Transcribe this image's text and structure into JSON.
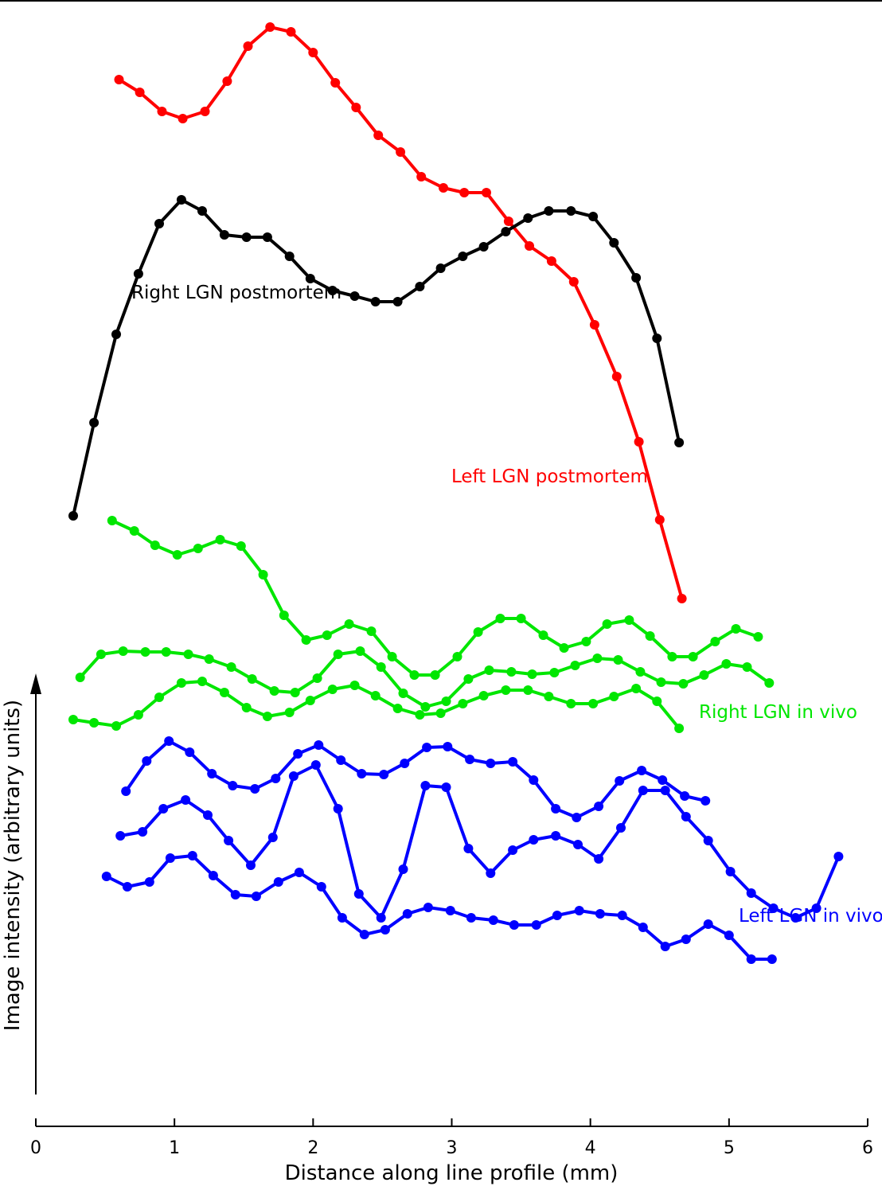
{
  "chart_data": {
    "type": "line",
    "title": "",
    "xlabel": "Distance along line profile (mm)",
    "ylabel": "Image intensity (arbitrary units)",
    "xlim": [
      0,
      6
    ],
    "xticks": [
      "0",
      "1",
      "2",
      "3",
      "4",
      "5",
      "6"
    ],
    "grid": false,
    "y_units": "arbitrary units (trace baselines offset)",
    "series": [
      {
        "name": "Left LGN postmortem",
        "color": "#ff0000",
        "x": [
          0.6,
          0.75,
          0.91,
          1.06,
          1.22,
          1.38,
          1.53,
          1.69,
          1.84,
          2.0,
          2.16,
          2.31,
          2.47,
          2.63,
          2.78,
          2.94,
          3.09,
          3.25,
          3.41,
          3.56,
          3.72,
          3.88,
          4.03,
          4.19,
          4.35,
          4.5,
          4.66
        ],
        "y": [
          93.4,
          91.8,
          89.4,
          88.5,
          89.4,
          93.2,
          97.6,
          100.0,
          99.4,
          96.8,
          93.0,
          89.9,
          86.4,
          84.3,
          81.2,
          79.8,
          79.2,
          79.2,
          75.6,
          72.5,
          70.6,
          68.0,
          62.6,
          56.1,
          47.9,
          38.1,
          28.2
        ]
      },
      {
        "name": "Right LGN postmortem",
        "color": "#000000",
        "x": [
          0.27,
          0.42,
          0.58,
          0.74,
          0.89,
          1.05,
          1.2,
          1.36,
          1.52,
          1.67,
          1.83,
          1.98,
          2.14,
          2.3,
          2.45,
          2.61,
          2.77,
          2.92,
          3.08,
          3.23,
          3.39,
          3.55,
          3.7,
          3.86,
          4.02,
          4.17,
          4.33,
          4.48,
          4.64
        ],
        "y": [
          38.6,
          50.3,
          61.4,
          69.0,
          75.3,
          78.3,
          76.9,
          73.9,
          73.6,
          73.6,
          71.2,
          68.4,
          66.9,
          66.2,
          65.5,
          65.5,
          67.4,
          69.7,
          71.2,
          72.4,
          74.3,
          76.0,
          76.9,
          76.9,
          76.2,
          72.9,
          68.5,
          60.9,
          47.8
        ]
      },
      {
        "name": "Right LGN in vivo",
        "color": "#00e600",
        "x": [
          0.55,
          0.71,
          0.86,
          1.02,
          1.17,
          1.33,
          1.48,
          1.64,
          1.79,
          1.95,
          2.1,
          2.26,
          2.42,
          2.57,
          2.73,
          2.88,
          3.04,
          3.19,
          3.35,
          3.5,
          3.66,
          3.81,
          3.97,
          4.12,
          4.28,
          4.43,
          4.59,
          4.74,
          4.9,
          5.05,
          5.21
        ],
        "y": [
          38.0,
          36.7,
          34.9,
          33.7,
          34.5,
          35.6,
          34.8,
          31.2,
          26.1,
          23.0,
          23.6,
          25.0,
          24.1,
          20.9,
          18.6,
          18.6,
          20.9,
          24.0,
          25.7,
          25.7,
          23.6,
          22.0,
          22.8,
          25.0,
          25.5,
          23.5,
          20.9,
          20.9,
          22.8,
          24.4,
          23.4
        ]
      },
      {
        "name": "",
        "color": "#00e600",
        "x": [
          0.32,
          0.47,
          0.63,
          0.79,
          0.94,
          1.1,
          1.25,
          1.41,
          1.56,
          1.72,
          1.87,
          2.03,
          2.18,
          2.34,
          2.49,
          2.65,
          2.81,
          2.96,
          3.12,
          3.27,
          3.43,
          3.58,
          3.74,
          3.89,
          4.05,
          4.2,
          4.36,
          4.51,
          4.67,
          4.82,
          4.98,
          5.13,
          5.29
        ],
        "y": [
          18.3,
          21.2,
          21.6,
          21.5,
          21.5,
          21.2,
          20.6,
          19.6,
          18.1,
          16.6,
          16.4,
          18.2,
          21.2,
          21.6,
          19.6,
          16.3,
          14.6,
          15.3,
          18.1,
          19.2,
          19.0,
          18.7,
          18.9,
          19.8,
          20.7,
          20.5,
          19.0,
          17.7,
          17.5,
          18.6,
          20.0,
          19.6,
          17.6
        ]
      },
      {
        "name": "",
        "color": "#00e600",
        "x": [
          0.27,
          0.42,
          0.58,
          0.74,
          0.89,
          1.05,
          1.2,
          1.36,
          1.52,
          1.67,
          1.83,
          1.98,
          2.14,
          2.3,
          2.45,
          2.61,
          2.77,
          2.92,
          3.08,
          3.23,
          3.39,
          3.55,
          3.7,
          3.86,
          4.02,
          4.17,
          4.33,
          4.48,
          4.64
        ],
        "y": [
          13.0,
          12.6,
          12.2,
          13.6,
          15.8,
          17.6,
          17.8,
          16.4,
          14.5,
          13.4,
          13.9,
          15.4,
          16.8,
          17.3,
          16.0,
          14.4,
          13.6,
          13.8,
          15.0,
          16.0,
          16.7,
          16.7,
          15.9,
          15.0,
          15.0,
          15.9,
          16.9,
          15.3,
          11.9
        ]
      },
      {
        "name": "Left LGN in vivo",
        "color": "#0000ff",
        "x": [
          0.65,
          0.8,
          0.96,
          1.11,
          1.27,
          1.42,
          1.58,
          1.73,
          1.89,
          2.04,
          2.2,
          2.35,
          2.51,
          2.66,
          2.82,
          2.97,
          3.13,
          3.28,
          3.44,
          3.59,
          3.75,
          3.9,
          4.06,
          4.21,
          4.37,
          4.52,
          4.68,
          4.83
        ],
        "y": [
          4.0,
          7.8,
          10.3,
          8.9,
          6.2,
          4.7,
          4.3,
          5.6,
          8.7,
          9.8,
          7.9,
          6.2,
          6.1,
          7.5,
          9.5,
          9.6,
          8.0,
          7.5,
          7.7,
          5.4,
          1.8,
          0.7,
          2.1,
          5.3,
          6.6,
          5.4,
          3.4,
          2.8
        ]
      },
      {
        "name": "",
        "color": "#0000ff",
        "x": [
          0.61,
          0.77,
          0.92,
          1.08,
          1.24,
          1.39,
          1.55,
          1.71,
          1.86,
          2.02,
          2.18,
          2.33,
          2.49,
          2.65,
          2.81,
          2.96,
          3.12,
          3.28,
          3.44,
          3.59,
          3.75,
          3.91,
          4.06,
          4.22,
          4.38,
          4.54,
          4.69,
          4.85,
          5.01,
          5.16,
          5.32,
          5.48,
          5.63,
          5.79
        ],
        "y": [
          -1.6,
          -1.1,
          1.8,
          2.9,
          1.0,
          -2.2,
          -5.3,
          -1.8,
          5.9,
          7.3,
          1.8,
          -8.9,
          -11.9,
          -5.8,
          4.7,
          4.5,
          -3.2,
          -6.3,
          -3.4,
          -2.1,
          -1.6,
          -2.7,
          -4.5,
          -0.6,
          4.1,
          4.1,
          0.8,
          -2.2,
          -6.1,
          -8.8,
          -10.7,
          -11.9,
          -10.7,
          -4.2
        ]
      },
      {
        "name": "",
        "color": "#0000ff",
        "x": [
          0.51,
          0.66,
          0.82,
          0.97,
          1.13,
          1.28,
          1.44,
          1.59,
          1.75,
          1.9,
          2.06,
          2.21,
          2.37,
          2.52,
          2.68,
          2.83,
          2.99,
          3.14,
          3.3,
          3.45,
          3.61,
          3.76,
          3.92,
          4.07,
          4.23,
          4.38,
          4.54,
          4.69,
          4.85,
          5.0,
          5.16,
          5.31
        ],
        "y": [
          -6.7,
          -8.0,
          -7.4,
          -4.4,
          -4.1,
          -6.6,
          -9.0,
          -9.2,
          -7.4,
          -6.2,
          -8.0,
          -11.9,
          -14.0,
          -13.4,
          -11.4,
          -10.6,
          -11.0,
          -11.9,
          -12.2,
          -12.8,
          -12.8,
          -11.6,
          -11.0,
          -11.4,
          -11.6,
          -13.1,
          -15.5,
          -14.6,
          -12.7,
          -14.1,
          -17.1,
          -17.1
        ]
      }
    ],
    "labels": [
      {
        "text": "Right LGN postmortem",
        "color": "#000000"
      },
      {
        "text": "Left LGN postmortem",
        "color": "#ff0000"
      },
      {
        "text": "Right LGN in vivo",
        "color": "#00e600"
      },
      {
        "text": "Left LGN in vivo",
        "color": "#0000ff"
      }
    ]
  }
}
